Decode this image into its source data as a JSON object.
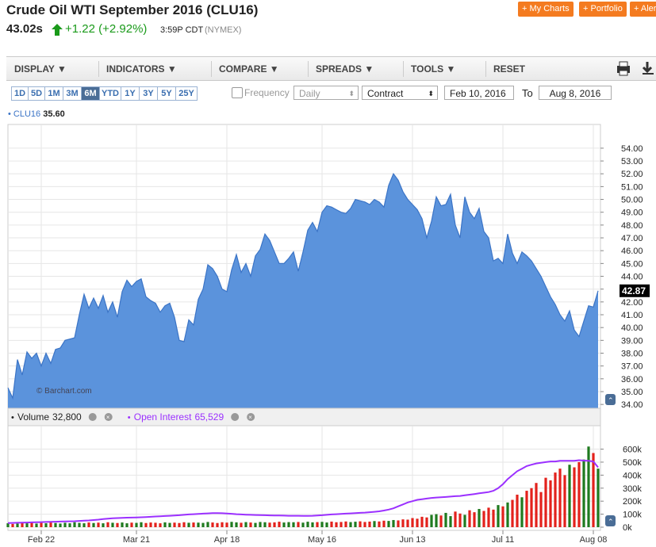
{
  "header": {
    "title": "Crude Oil WTI September 2016 (CLU16)",
    "price": "43.02s",
    "change": "+1.22 (+2.92%)",
    "time": "3:59P CDT",
    "exchange": "(NYMEX)",
    "buttons": [
      "+ My Charts",
      "+ Portfolio",
      "+ Aler"
    ]
  },
  "toolbar": {
    "menus": [
      "DISPLAY",
      "INDICATORS",
      "COMPARE",
      "SPREADS",
      "TOOLS"
    ],
    "reset": "RESET"
  },
  "periods": {
    "items": [
      "1D",
      "5D",
      "1M",
      "3M",
      "6M",
      "YTD",
      "1Y",
      "3Y",
      "5Y",
      "25Y"
    ],
    "selected": "6M"
  },
  "controls": {
    "frequency": "Frequency",
    "frequency_value": "Daily",
    "contract": "Contract",
    "from": "Feb 10, 2016",
    "to_label": "To",
    "to": "Aug 8, 2016"
  },
  "legend": {
    "value": "35.60"
  },
  "watermark": "© Barchart.com",
  "chart_data": [
    {
      "type": "area",
      "series": [
        {
          "name": "CLU16",
          "color": "#5b93dc",
          "line_color": "#3b74c6",
          "values": [
            35.3,
            34.5,
            37.5,
            36.3,
            38.1,
            37.6,
            38.0,
            37.0,
            38.0,
            37.2,
            38.3,
            38.4,
            39.0,
            39.1,
            39.2,
            41.0,
            42.6,
            41.5,
            42.3,
            41.5,
            42.5,
            41.2,
            42.0,
            40.8,
            42.8,
            43.7,
            43.2,
            43.6,
            43.8,
            42.4,
            42.1,
            41.9,
            41.2,
            41.7,
            41.9,
            40.8,
            39.0,
            38.9,
            40.6,
            40.2,
            42.2,
            43.0,
            44.9,
            44.6,
            44.0,
            43.0,
            42.8,
            44.5,
            45.7,
            44.3,
            45.0,
            44.0,
            45.6,
            46.1,
            47.3,
            46.8,
            45.9,
            45.0,
            45.0,
            45.4,
            45.9,
            44.4,
            45.9,
            47.6,
            48.2,
            47.5,
            49.0,
            49.5,
            49.4,
            49.2,
            49.0,
            48.9,
            49.3,
            50.0,
            49.9,
            49.8,
            49.6,
            50.0,
            49.8,
            49.4,
            51.1,
            52.0,
            51.5,
            50.6,
            50.0,
            49.6,
            49.2,
            48.5,
            47.0,
            48.3,
            50.2,
            49.5,
            49.6,
            50.4,
            48.0,
            47.0,
            50.2,
            49.0,
            48.5,
            49.3,
            47.5,
            47.0,
            45.2,
            45.4,
            45.0,
            47.3,
            45.8,
            45.0,
            45.9,
            45.6,
            45.2,
            44.6,
            44.0,
            43.2,
            42.4,
            41.8,
            41.0,
            40.5,
            41.3,
            39.8,
            39.3,
            40.5,
            41.7,
            41.6,
            42.87
          ]
        }
      ],
      "current_label": "42.87",
      "ylim": [
        33.7,
        55.85
      ],
      "yticks": [
        {
          "value": 34,
          "label": "34.00"
        },
        {
          "value": 35,
          "label": "35.00"
        },
        {
          "value": 36,
          "label": "36.00"
        },
        {
          "value": 37,
          "label": "37.00"
        },
        {
          "value": 38,
          "label": "38.00"
        },
        {
          "value": 39,
          "label": "39.00"
        },
        {
          "value": 40,
          "label": "40.00"
        },
        {
          "value": 41,
          "label": "41.00"
        },
        {
          "value": 42,
          "label": "42.00"
        },
        {
          "value": 43,
          "label": "43.00"
        },
        {
          "value": 44,
          "label": "44.00"
        },
        {
          "value": 45,
          "label": "45.00"
        },
        {
          "value": 46,
          "label": "46.00"
        },
        {
          "value": 47,
          "label": "47.00"
        },
        {
          "value": 48,
          "label": "48.00"
        },
        {
          "value": 49,
          "label": "49.00"
        },
        {
          "value": 50,
          "label": "50.00"
        },
        {
          "value": 51,
          "label": "51.00"
        },
        {
          "value": 52,
          "label": "52.00"
        },
        {
          "value": 53,
          "label": "53.00"
        },
        {
          "value": 54,
          "label": "54.00"
        }
      ],
      "grid": true
    },
    {
      "type": "bar",
      "categories": [
        null,
        null,
        null,
        null,
        null,
        null,
        null,
        "Feb 22",
        null,
        null,
        null,
        null,
        null,
        null,
        null,
        null,
        null,
        null,
        null,
        null,
        null,
        null,
        null,
        null,
        null,
        null,
        null,
        "Mar 21",
        null,
        null,
        null,
        null,
        null,
        null,
        null,
        null,
        null,
        null,
        null,
        null,
        null,
        null,
        null,
        null,
        null,
        null,
        "Apr 18",
        null,
        null,
        null,
        null,
        null,
        null,
        null,
        null,
        null,
        null,
        null,
        null,
        null,
        null,
        null,
        null,
        null,
        null,
        null,
        "May 16",
        null,
        null,
        null,
        null,
        null,
        null,
        null,
        null,
        null,
        null,
        null,
        null,
        null,
        null,
        null,
        null,
        null,
        null,
        "Jun 13",
        null,
        null,
        null,
        null,
        null,
        null,
        null,
        null,
        null,
        null,
        null,
        null,
        null,
        null,
        null,
        null,
        null,
        null,
        "Jul 11",
        null,
        null,
        null,
        null,
        null,
        null,
        null,
        null,
        null,
        null,
        null,
        null,
        null,
        null,
        null,
        null,
        null,
        null,
        "Aug 08",
        null
      ],
      "series": [
        {
          "name": "Volume",
          "label_value": "32,800",
          "up_color": "#1f7a1f",
          "down_color": "#e3211c",
          "values": [
            30000,
            25000,
            28000,
            32000,
            30000,
            35000,
            28000,
            33000,
            30000,
            36000,
            32000,
            28000,
            34000,
            30000,
            38000,
            33000,
            30000,
            36000,
            32000,
            35000,
            30000,
            38000,
            34000,
            32000,
            36000,
            30000,
            35000,
            33000,
            38000,
            32000,
            36000,
            34000,
            30000,
            37000,
            33000,
            35000,
            32000,
            38000,
            34000,
            36000,
            35000,
            33000,
            40000,
            36000,
            32000,
            38000,
            35000,
            41000,
            37000,
            34000,
            39000,
            36000,
            33000,
            40000,
            38000,
            35000,
            37000,
            42000,
            36000,
            39000,
            38000,
            40000,
            35000,
            42000,
            37000,
            39000,
            41000,
            36000,
            43000,
            38000,
            40000,
            44000,
            39000,
            42000,
            45000,
            40000,
            43000,
            47000,
            44000,
            50000,
            48000,
            55000,
            52000,
            60000,
            58000,
            70000,
            65000,
            80000,
            75000,
            95000,
            100000,
            90000,
            110000,
            85000,
            120000,
            105000,
            95000,
            130000,
            115000,
            140000,
            125000,
            150000,
            135000,
            170000,
            160000,
            190000,
            210000,
            250000,
            230000,
            280000,
            300000,
            340000,
            270000,
            380000,
            360000,
            420000,
            450000,
            400000,
            480000,
            460000,
            500000,
            520000,
            620000,
            570000,
            450000
          ]
        },
        {
          "name": "Open Interest",
          "type": "line",
          "label_value": "65,529",
          "color": "#9b30ff",
          "values": [
            32000,
            33000,
            34000,
            35000,
            36000,
            37000,
            38000,
            39000,
            40000,
            41000,
            42000,
            43000,
            44000,
            45000,
            46000,
            48000,
            50000,
            52000,
            55000,
            58000,
            62000,
            65000,
            68000,
            70000,
            72000,
            73000,
            74000,
            75000,
            76000,
            78000,
            80000,
            82000,
            84000,
            86000,
            88000,
            90000,
            92000,
            95000,
            98000,
            100000,
            102000,
            104000,
            106000,
            108000,
            108000,
            107000,
            105000,
            103000,
            100000,
            98000,
            96000,
            95000,
            94000,
            93000,
            92000,
            91000,
            90000,
            90000,
            89000,
            88000,
            88000,
            88000,
            87000,
            87000,
            88000,
            90000,
            92000,
            95000,
            98000,
            100000,
            102000,
            104000,
            106000,
            108000,
            110000,
            112000,
            115000,
            118000,
            122000,
            128000,
            135000,
            145000,
            160000,
            175000,
            190000,
            200000,
            210000,
            215000,
            220000,
            225000,
            228000,
            230000,
            232000,
            235000,
            238000,
            240000,
            245000,
            250000,
            255000,
            260000,
            265000,
            270000,
            280000,
            300000,
            330000,
            370000,
            400000,
            430000,
            450000,
            470000,
            480000,
            490000,
            495000,
            500000,
            505000,
            505000,
            510000,
            510000,
            510000,
            510000,
            515000,
            512000,
            510000,
            505000,
            460000
          ]
        }
      ],
      "ylim": [
        0,
        780000
      ],
      "yticks": [
        {
          "value": 0,
          "label": "0k"
        },
        {
          "value": 100000,
          "label": "100k"
        },
        {
          "value": 200000,
          "label": "200k"
        },
        {
          "value": 300000,
          "label": "300k"
        },
        {
          "value": 400000,
          "label": "400k"
        },
        {
          "value": 500000,
          "label": "500k"
        },
        {
          "value": 600000,
          "label": "600k"
        }
      ],
      "grid": true
    }
  ]
}
